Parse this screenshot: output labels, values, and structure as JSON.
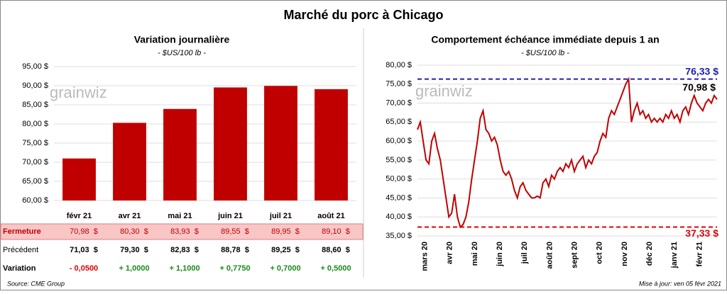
{
  "title": "Marché du porc à Chicago",
  "watermark": "grainwiz",
  "chart_data": [
    {
      "type": "bar",
      "title": "Variation journalière",
      "subtitle": "- $US/100 lb -",
      "categories": [
        "févr 21",
        "avr 21",
        "mai 21",
        "juin 21",
        "juil 21",
        "août 21"
      ],
      "values": [
        70.98,
        80.3,
        83.93,
        89.55,
        89.95,
        89.1
      ],
      "color": "#c00000",
      "ylim": [
        60,
        95
      ],
      "yticks": [
        {
          "value": 60,
          "label": "60,00 $"
        },
        {
          "value": 65,
          "label": "65,00 $"
        },
        {
          "value": 70,
          "label": "70,00 $"
        },
        {
          "value": 75,
          "label": "75,00 $"
        },
        {
          "value": 80,
          "label": "80,00 $"
        },
        {
          "value": 85,
          "label": "85,00 $"
        },
        {
          "value": 90,
          "label": "90,00 $"
        },
        {
          "value": 95,
          "label": "95,00 $"
        }
      ],
      "grid": true
    },
    {
      "type": "line",
      "title": "Comportement échéance immédiate depuis 1 an",
      "subtitle": "- $US/100 lb -",
      "xticks": [
        "mars 20",
        "avr 20",
        "mai 20",
        "juin 20",
        "juil 20",
        "août 20",
        "sept 20",
        "oct 20",
        "nov 20",
        "déc 20",
        "janv 21",
        "févr 21"
      ],
      "values": [
        63,
        65,
        60,
        55,
        54,
        60,
        62,
        58,
        55,
        50,
        45,
        40,
        41,
        46,
        40,
        37.33,
        38,
        40,
        44,
        50,
        55,
        60,
        66,
        68,
        63,
        62,
        60,
        61,
        59,
        55,
        52,
        51,
        52,
        50,
        47,
        45,
        48,
        49,
        47,
        46,
        45,
        45,
        45.5,
        45,
        49,
        50,
        48,
        51,
        50,
        52,
        53,
        52,
        54,
        53,
        55,
        52,
        54,
        55,
        56,
        53,
        55,
        54,
        56,
        57,
        60,
        62,
        61,
        66,
        68,
        67,
        69,
        71,
        73,
        75,
        76.33,
        65,
        68,
        70,
        67,
        68,
        66,
        67,
        65,
        66,
        65,
        66,
        65,
        67,
        66,
        68,
        66,
        67,
        65,
        68,
        69,
        67,
        70,
        72,
        70,
        69,
        68,
        70,
        71,
        70,
        72,
        70.98
      ],
      "color": "#c00000",
      "ylim": [
        35,
        80
      ],
      "yticks": [
        {
          "value": 35,
          "label": "35,00 $"
        },
        {
          "value": 40,
          "label": "40,00 $"
        },
        {
          "value": 45,
          "label": "45,00 $"
        },
        {
          "value": 50,
          "label": "50,00 $"
        },
        {
          "value": 55,
          "label": "55,00 $"
        },
        {
          "value": 60,
          "label": "60,00 $"
        },
        {
          "value": 65,
          "label": "65,00 $"
        },
        {
          "value": 70,
          "label": "70,00 $"
        },
        {
          "value": 75,
          "label": "75,00 $"
        },
        {
          "value": 80,
          "label": "80,00 $"
        }
      ],
      "grid": true,
      "ref_lines": [
        {
          "value": 76.33,
          "label": "76,33 $",
          "color": "#2020b0"
        },
        {
          "value": 37.33,
          "label": "37,33 $",
          "color": "#e00000"
        }
      ],
      "last_value_label": "70,98 $"
    }
  ],
  "table": {
    "rows": [
      {
        "label": "Fermeture",
        "cells": [
          "70,98  $",
          "80,30  $",
          "83,93  $",
          "89,55  $",
          "89,95  $",
          "89,10  $"
        ]
      },
      {
        "label": "Précédent",
        "cells": [
          "71,03  $",
          "79,30  $",
          "82,83  $",
          "88,78  $",
          "89,25  $",
          "88,60  $"
        ]
      },
      {
        "label": "Variation",
        "cells": [
          "- 0,0500",
          "+ 1,0000",
          "+ 1,1000",
          "+ 0,7750",
          "+ 0,7000",
          "+ 0,5000"
        ]
      }
    ]
  },
  "footer": {
    "source": "Source: CME Group",
    "updated": "Mise à jour: ven 05 févr 2021"
  }
}
